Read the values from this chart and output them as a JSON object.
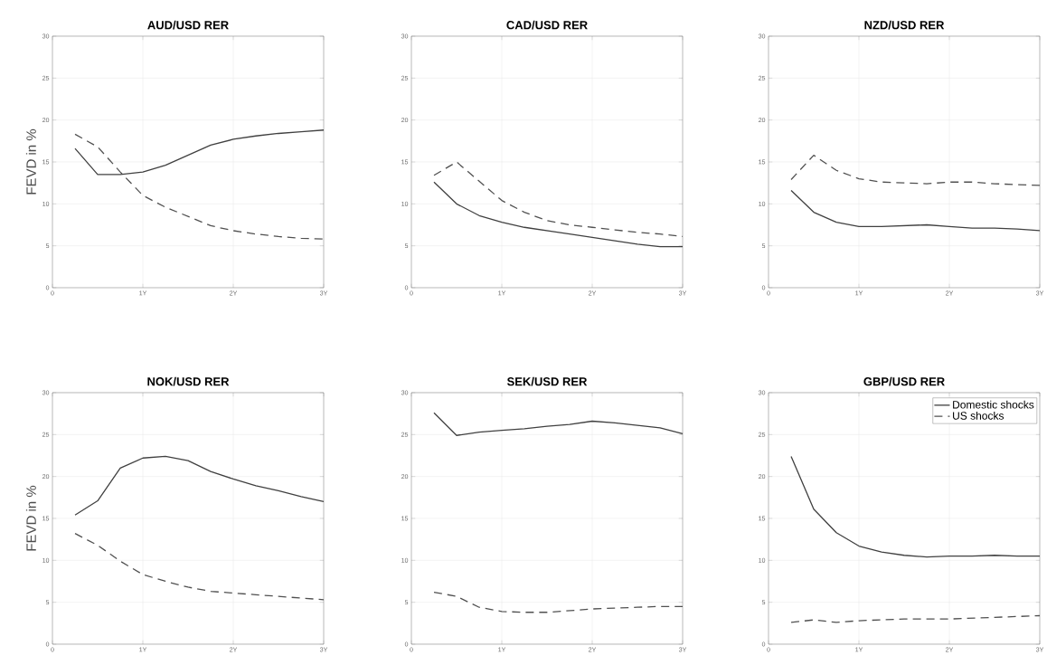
{
  "chart_data": [
    {
      "type": "line",
      "title": "AUD/USD RER",
      "ylabel": "FEVD in %",
      "x": [
        0.25,
        0.5,
        0.75,
        1,
        1.25,
        1.5,
        1.75,
        2,
        2.25,
        2.5,
        2.75,
        3
      ],
      "xlim": [
        0,
        3
      ],
      "ylim": [
        0,
        30
      ],
      "xticks": [
        0,
        {
          "value": 1,
          "label": "1Y"
        },
        {
          "value": 2,
          "label": "2Y"
        },
        {
          "value": 3,
          "label": "3Y"
        }
      ],
      "yticks": [
        0,
        5,
        10,
        15,
        20,
        25,
        30
      ],
      "grid": true,
      "series": [
        {
          "color": "#404040",
          "line_style": "solid",
          "values": [
            16.6,
            13.5,
            13.5,
            13.8,
            14.6,
            15.8,
            17.0,
            17.7,
            18.1,
            18.4,
            18.6,
            18.8
          ]
        },
        {
          "color": "#505050",
          "line_style": "dashed",
          "values": [
            18.3,
            16.8,
            13.8,
            11.0,
            9.6,
            8.5,
            7.4,
            6.8,
            6.4,
            6.1,
            5.9,
            5.8
          ]
        }
      ]
    },
    {
      "type": "line",
      "title": "CAD/USD RER",
      "x": [
        0.25,
        0.5,
        0.75,
        1,
        1.25,
        1.5,
        1.75,
        2,
        2.25,
        2.5,
        2.75,
        3
      ],
      "xlim": [
        0,
        3
      ],
      "ylim": [
        0,
        30
      ],
      "xticks": [
        0,
        {
          "value": 1,
          "label": "1Y"
        },
        {
          "value": 2,
          "label": "2Y"
        },
        {
          "value": 3,
          "label": "3Y"
        }
      ],
      "yticks": [
        0,
        5,
        10,
        15,
        20,
        25,
        30
      ],
      "grid": true,
      "series": [
        {
          "color": "#404040",
          "line_style": "solid",
          "values": [
            12.6,
            10.0,
            8.6,
            7.8,
            7.2,
            6.8,
            6.4,
            6.0,
            5.6,
            5.2,
            4.9,
            4.9
          ]
        },
        {
          "color": "#505050",
          "line_style": "dashed",
          "values": [
            13.4,
            15.0,
            12.7,
            10.4,
            9.0,
            8.0,
            7.5,
            7.2,
            6.9,
            6.6,
            6.4,
            6.1
          ]
        }
      ]
    },
    {
      "type": "line",
      "title": "NZD/USD RER",
      "x": [
        0.25,
        0.5,
        0.75,
        1,
        1.25,
        1.5,
        1.75,
        2,
        2.25,
        2.5,
        2.75,
        3
      ],
      "xlim": [
        0,
        3
      ],
      "ylim": [
        0,
        30
      ],
      "xticks": [
        0,
        {
          "value": 1,
          "label": "1Y"
        },
        {
          "value": 2,
          "label": "2Y"
        },
        {
          "value": 3,
          "label": "3Y"
        }
      ],
      "yticks": [
        0,
        5,
        10,
        15,
        20,
        25,
        30
      ],
      "grid": true,
      "series": [
        {
          "color": "#404040",
          "line_style": "solid",
          "values": [
            11.6,
            9.0,
            7.8,
            7.3,
            7.3,
            7.4,
            7.5,
            7.3,
            7.1,
            7.1,
            7.0,
            6.8
          ]
        },
        {
          "color": "#505050",
          "line_style": "dashed",
          "values": [
            12.9,
            15.8,
            14.0,
            13.0,
            12.6,
            12.5,
            12.4,
            12.6,
            12.6,
            12.4,
            12.3,
            12.2
          ]
        }
      ]
    },
    {
      "type": "line",
      "title": "NOK/USD RER",
      "ylabel": "FEVD in %",
      "x": [
        0.25,
        0.5,
        0.75,
        1,
        1.25,
        1.5,
        1.75,
        2,
        2.25,
        2.5,
        2.75,
        3
      ],
      "xlim": [
        0,
        3
      ],
      "ylim": [
        0,
        30
      ],
      "xticks": [
        0,
        {
          "value": 1,
          "label": "1Y"
        },
        {
          "value": 2,
          "label": "2Y"
        },
        {
          "value": 3,
          "label": "3Y"
        }
      ],
      "yticks": [
        0,
        5,
        10,
        15,
        20,
        25,
        30
      ],
      "grid": true,
      "series": [
        {
          "color": "#404040",
          "line_style": "solid",
          "values": [
            15.4,
            17.1,
            21.0,
            22.2,
            22.4,
            21.9,
            20.6,
            19.7,
            18.9,
            18.3,
            17.6,
            17.0
          ]
        },
        {
          "color": "#505050",
          "line_style": "dashed",
          "values": [
            13.2,
            11.8,
            9.9,
            8.3,
            7.5,
            6.8,
            6.3,
            6.1,
            5.9,
            5.7,
            5.5,
            5.3
          ]
        }
      ]
    },
    {
      "type": "line",
      "title": "SEK/USD RER",
      "x": [
        0.25,
        0.5,
        0.75,
        1,
        1.25,
        1.5,
        1.75,
        2,
        2.25,
        2.5,
        2.75,
        3
      ],
      "xlim": [
        0,
        3
      ],
      "ylim": [
        0,
        30
      ],
      "xticks": [
        0,
        {
          "value": 1,
          "label": "1Y"
        },
        {
          "value": 2,
          "label": "2Y"
        },
        {
          "value": 3,
          "label": "3Y"
        }
      ],
      "yticks": [
        0,
        5,
        10,
        15,
        20,
        25,
        30
      ],
      "grid": true,
      "series": [
        {
          "color": "#404040",
          "line_style": "solid",
          "values": [
            27.6,
            24.9,
            25.3,
            25.5,
            25.7,
            26.0,
            26.2,
            26.6,
            26.4,
            26.1,
            25.8,
            25.1
          ]
        },
        {
          "color": "#505050",
          "line_style": "dashed",
          "values": [
            6.2,
            5.7,
            4.4,
            3.9,
            3.8,
            3.8,
            4.0,
            4.2,
            4.3,
            4.4,
            4.5,
            4.5
          ]
        }
      ]
    },
    {
      "type": "line",
      "title": "GBP/USD RER",
      "x": [
        0.25,
        0.5,
        0.75,
        1,
        1.25,
        1.5,
        1.75,
        2,
        2.25,
        2.5,
        2.75,
        3
      ],
      "xlim": [
        0,
        3
      ],
      "ylim": [
        0,
        30
      ],
      "xticks": [
        0,
        {
          "value": 1,
          "label": "1Y"
        },
        {
          "value": 2,
          "label": "2Y"
        },
        {
          "value": 3,
          "label": "3Y"
        }
      ],
      "yticks": [
        0,
        5,
        10,
        15,
        20,
        25,
        30
      ],
      "grid": true,
      "legend": "top right",
      "series": [
        {
          "name": "Domestic shocks",
          "color": "#404040",
          "line_style": "solid",
          "values": [
            22.4,
            16.1,
            13.3,
            11.7,
            11.0,
            10.6,
            10.4,
            10.5,
            10.5,
            10.6,
            10.5,
            10.5
          ]
        },
        {
          "name": "US shocks",
          "color": "#505050",
          "line_style": "dashed",
          "values": [
            2.6,
            2.9,
            2.6,
            2.8,
            2.9,
            3.0,
            3.0,
            3.0,
            3.1,
            3.2,
            3.3,
            3.4
          ]
        }
      ]
    }
  ]
}
